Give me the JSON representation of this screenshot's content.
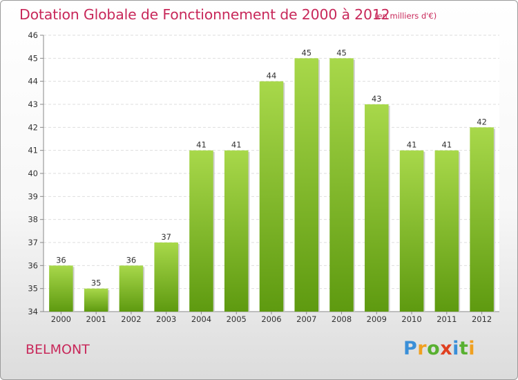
{
  "title": "Dotation Globale de Fonctionnement de 2000 à 2012",
  "subtitle": "(en milliers d'€)",
  "commune": "BELMONT",
  "logo": {
    "letters": [
      "P",
      "r",
      "o",
      "x",
      "i",
      "t",
      "i"
    ],
    "colors": [
      "#3a8fd8",
      "#f0a020",
      "#58b030",
      "#e04020",
      "#3a8fd8",
      "#58b030",
      "#f0a020"
    ]
  },
  "colors": {
    "title": "#c8285a",
    "bar_light": "#a8d84a",
    "bar_dark": "#5e9a10"
  },
  "chart_data": {
    "type": "bar",
    "title": "Dotation Globale de Fonctionnement de 2000 à 2012",
    "subtitle": "(en milliers d'€)",
    "xlabel": "",
    "ylabel": "",
    "categories": [
      "2000",
      "2001",
      "2002",
      "2003",
      "2004",
      "2005",
      "2006",
      "2007",
      "2008",
      "2009",
      "2010",
      "2011",
      "2012"
    ],
    "values": [
      36,
      35,
      36,
      37,
      41,
      41,
      44,
      45,
      45,
      43,
      41,
      41,
      42
    ],
    "ylim": [
      34,
      46
    ],
    "yticks": [
      34,
      35,
      36,
      37,
      38,
      39,
      40,
      41,
      42,
      43,
      44,
      45,
      46
    ],
    "grid": true,
    "legend": "none"
  }
}
